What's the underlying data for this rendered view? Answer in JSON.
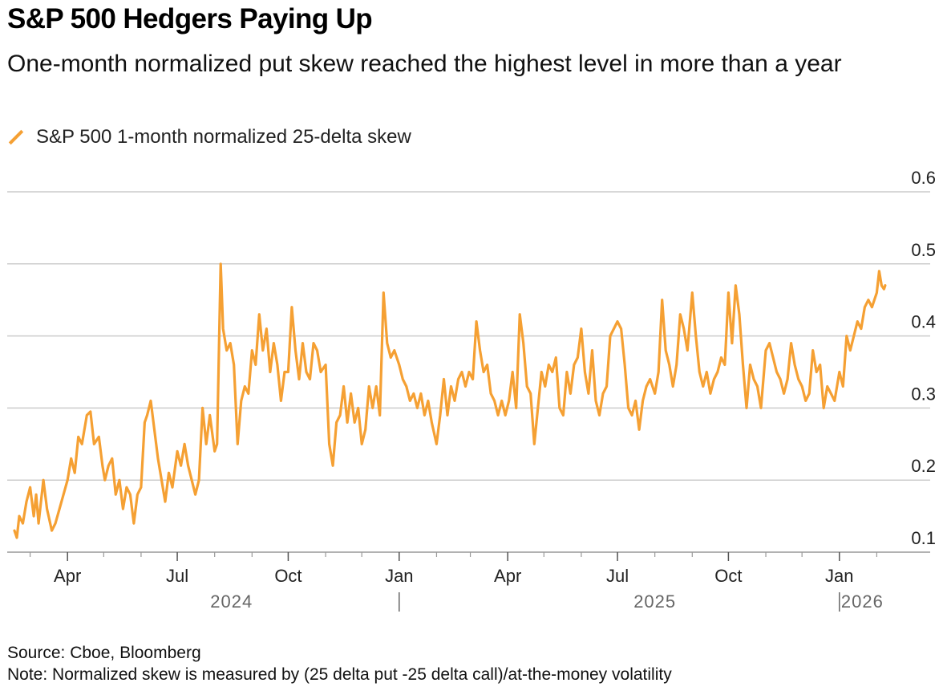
{
  "header": {
    "title": "S&P 500 Hedgers Paying Up",
    "subtitle": "One-month normalized put skew reached the highest level in more than a year"
  },
  "legend": {
    "label": "S&P 500 1-month normalized 25-delta skew",
    "color": "#f5a033"
  },
  "footer": {
    "source": "Source: Cboe, Bloomberg",
    "note": "Note: Normalized skew is measured by (25 delta put -25 delta call)/at-the-money volatility"
  },
  "colors": {
    "line": "#f5a033",
    "grid": "#cccccc",
    "axis": "#999999"
  },
  "chart_data": {
    "type": "line",
    "title": "S&P 500 Hedgers Paying Up",
    "subtitle": "One-month normalized put skew reached the highest level in more than a year",
    "xlabel": "",
    "ylabel": "",
    "x_range": [
      "2024-02-15",
      "2026-02-22"
    ],
    "ylim": [
      0.1,
      0.6
    ],
    "y_ticks": [
      "0.1",
      "0.2",
      "0.3",
      "0.4",
      "0.5",
      "0.6"
    ],
    "y_axis_position": "right",
    "grid": true,
    "legend_position": "top-left",
    "x_month_ticks": [
      {
        "date": "2024-04-01",
        "label": "Apr"
      },
      {
        "date": "2024-07-01",
        "label": "Jul"
      },
      {
        "date": "2024-10-01",
        "label": "Oct"
      },
      {
        "date": "2025-01-01",
        "label": "Jan"
      },
      {
        "date": "2025-04-01",
        "label": "Apr"
      },
      {
        "date": "2025-07-01",
        "label": "Jul"
      },
      {
        "date": "2025-10-01",
        "label": "Oct"
      },
      {
        "date": "2026-01-01",
        "label": "Jan"
      }
    ],
    "x_year_labels": [
      {
        "date": "2024-08-15",
        "label": "2024"
      },
      {
        "date": "2025-08-01",
        "label": "2025"
      },
      {
        "date": "2026-01-20",
        "label": "2026"
      }
    ],
    "x_year_separators": [
      "2025-01-01",
      "2026-01-01"
    ],
    "series": [
      {
        "name": "S&P 500 1-month normalized 25-delta skew",
        "color": "#f5a033",
        "points": [
          [
            "2024-02-17",
            0.13
          ],
          [
            "2024-02-19",
            0.12
          ],
          [
            "2024-02-21",
            0.15
          ],
          [
            "2024-02-24",
            0.14
          ],
          [
            "2024-02-27",
            0.17
          ],
          [
            "2024-03-01",
            0.19
          ],
          [
            "2024-03-04",
            0.15
          ],
          [
            "2024-03-06",
            0.18
          ],
          [
            "2024-03-08",
            0.14
          ],
          [
            "2024-03-12",
            0.2
          ],
          [
            "2024-03-15",
            0.16
          ],
          [
            "2024-03-19",
            0.13
          ],
          [
            "2024-03-22",
            0.14
          ],
          [
            "2024-03-27",
            0.17
          ],
          [
            "2024-04-01",
            0.2
          ],
          [
            "2024-04-04",
            0.23
          ],
          [
            "2024-04-07",
            0.21
          ],
          [
            "2024-04-10",
            0.26
          ],
          [
            "2024-04-13",
            0.25
          ],
          [
            "2024-04-17",
            0.29
          ],
          [
            "2024-04-20",
            0.295
          ],
          [
            "2024-04-23",
            0.25
          ],
          [
            "2024-04-27",
            0.26
          ],
          [
            "2024-04-30",
            0.22
          ],
          [
            "2024-05-02",
            0.2
          ],
          [
            "2024-05-05",
            0.22
          ],
          [
            "2024-05-08",
            0.23
          ],
          [
            "2024-05-11",
            0.18
          ],
          [
            "2024-05-14",
            0.2
          ],
          [
            "2024-05-17",
            0.16
          ],
          [
            "2024-05-20",
            0.19
          ],
          [
            "2024-05-23",
            0.18
          ],
          [
            "2024-05-26",
            0.14
          ],
          [
            "2024-05-29",
            0.18
          ],
          [
            "2024-06-01",
            0.19
          ],
          [
            "2024-06-04",
            0.28
          ],
          [
            "2024-06-06",
            0.29
          ],
          [
            "2024-06-09",
            0.31
          ],
          [
            "2024-06-12",
            0.27
          ],
          [
            "2024-06-15",
            0.23
          ],
          [
            "2024-06-18",
            0.2
          ],
          [
            "2024-06-21",
            0.17
          ],
          [
            "2024-06-24",
            0.21
          ],
          [
            "2024-06-27",
            0.19
          ],
          [
            "2024-07-01",
            0.24
          ],
          [
            "2024-07-04",
            0.22
          ],
          [
            "2024-07-07",
            0.25
          ],
          [
            "2024-07-10",
            0.22
          ],
          [
            "2024-07-13",
            0.2
          ],
          [
            "2024-07-16",
            0.18
          ],
          [
            "2024-07-19",
            0.2
          ],
          [
            "2024-07-22",
            0.3
          ],
          [
            "2024-07-25",
            0.25
          ],
          [
            "2024-07-28",
            0.29
          ],
          [
            "2024-08-01",
            0.24
          ],
          [
            "2024-08-03",
            0.25
          ],
          [
            "2024-08-06",
            0.5
          ],
          [
            "2024-08-08",
            0.41
          ],
          [
            "2024-08-11",
            0.38
          ],
          [
            "2024-08-14",
            0.39
          ],
          [
            "2024-08-17",
            0.36
          ],
          [
            "2024-08-20",
            0.25
          ],
          [
            "2024-08-23",
            0.31
          ],
          [
            "2024-08-26",
            0.33
          ],
          [
            "2024-08-29",
            0.32
          ],
          [
            "2024-09-01",
            0.38
          ],
          [
            "2024-09-04",
            0.36
          ],
          [
            "2024-09-07",
            0.43
          ],
          [
            "2024-09-10",
            0.38
          ],
          [
            "2024-09-13",
            0.41
          ],
          [
            "2024-09-16",
            0.35
          ],
          [
            "2024-09-19",
            0.39
          ],
          [
            "2024-09-22",
            0.36
          ],
          [
            "2024-09-25",
            0.31
          ],
          [
            "2024-09-28",
            0.35
          ],
          [
            "2024-10-01",
            0.35
          ],
          [
            "2024-10-04",
            0.44
          ],
          [
            "2024-10-07",
            0.38
          ],
          [
            "2024-10-10",
            0.34
          ],
          [
            "2024-10-13",
            0.39
          ],
          [
            "2024-10-16",
            0.35
          ],
          [
            "2024-10-19",
            0.34
          ],
          [
            "2024-10-22",
            0.39
          ],
          [
            "2024-10-25",
            0.38
          ],
          [
            "2024-10-28",
            0.35
          ],
          [
            "2024-11-01",
            0.36
          ],
          [
            "2024-11-04",
            0.25
          ],
          [
            "2024-11-07",
            0.22
          ],
          [
            "2024-11-10",
            0.28
          ],
          [
            "2024-11-13",
            0.29
          ],
          [
            "2024-11-16",
            0.33
          ],
          [
            "2024-11-19",
            0.28
          ],
          [
            "2024-11-22",
            0.32
          ],
          [
            "2024-11-25",
            0.28
          ],
          [
            "2024-11-28",
            0.3
          ],
          [
            "2024-12-01",
            0.25
          ],
          [
            "2024-12-04",
            0.27
          ],
          [
            "2024-12-07",
            0.33
          ],
          [
            "2024-12-10",
            0.3
          ],
          [
            "2024-12-13",
            0.33
          ],
          [
            "2024-12-16",
            0.29
          ],
          [
            "2024-12-19",
            0.46
          ],
          [
            "2024-12-22",
            0.39
          ],
          [
            "2024-12-25",
            0.37
          ],
          [
            "2024-12-28",
            0.38
          ],
          [
            "2025-01-01",
            0.36
          ],
          [
            "2025-01-04",
            0.34
          ],
          [
            "2025-01-07",
            0.33
          ],
          [
            "2025-01-10",
            0.31
          ],
          [
            "2025-01-13",
            0.32
          ],
          [
            "2025-01-16",
            0.3
          ],
          [
            "2025-01-19",
            0.32
          ],
          [
            "2025-01-22",
            0.29
          ],
          [
            "2025-01-25",
            0.31
          ],
          [
            "2025-01-28",
            0.28
          ],
          [
            "2025-02-01",
            0.25
          ],
          [
            "2025-02-04",
            0.29
          ],
          [
            "2025-02-07",
            0.34
          ],
          [
            "2025-02-10",
            0.29
          ],
          [
            "2025-02-13",
            0.33
          ],
          [
            "2025-02-16",
            0.31
          ],
          [
            "2025-02-19",
            0.34
          ],
          [
            "2025-02-22",
            0.35
          ],
          [
            "2025-02-25",
            0.33
          ],
          [
            "2025-02-28",
            0.35
          ],
          [
            "2025-03-03",
            0.34
          ],
          [
            "2025-03-06",
            0.42
          ],
          [
            "2025-03-09",
            0.38
          ],
          [
            "2025-03-12",
            0.35
          ],
          [
            "2025-03-15",
            0.36
          ],
          [
            "2025-03-18",
            0.32
          ],
          [
            "2025-03-21",
            0.31
          ],
          [
            "2025-03-24",
            0.29
          ],
          [
            "2025-03-27",
            0.31
          ],
          [
            "2025-03-30",
            0.29
          ],
          [
            "2025-04-02",
            0.31
          ],
          [
            "2025-04-05",
            0.35
          ],
          [
            "2025-04-08",
            0.3
          ],
          [
            "2025-04-11",
            0.43
          ],
          [
            "2025-04-14",
            0.39
          ],
          [
            "2025-04-17",
            0.33
          ],
          [
            "2025-04-20",
            0.32
          ],
          [
            "2025-04-23",
            0.25
          ],
          [
            "2025-04-26",
            0.3
          ],
          [
            "2025-04-29",
            0.35
          ],
          [
            "2025-05-02",
            0.33
          ],
          [
            "2025-05-05",
            0.36
          ],
          [
            "2025-05-08",
            0.35
          ],
          [
            "2025-05-11",
            0.37
          ],
          [
            "2025-05-14",
            0.3
          ],
          [
            "2025-05-17",
            0.29
          ],
          [
            "2025-05-20",
            0.35
          ],
          [
            "2025-05-23",
            0.32
          ],
          [
            "2025-05-26",
            0.36
          ],
          [
            "2025-05-29",
            0.37
          ],
          [
            "2025-06-01",
            0.41
          ],
          [
            "2025-06-04",
            0.35
          ],
          [
            "2025-06-07",
            0.32
          ],
          [
            "2025-06-10",
            0.38
          ],
          [
            "2025-06-13",
            0.31
          ],
          [
            "2025-06-16",
            0.29
          ],
          [
            "2025-06-19",
            0.32
          ],
          [
            "2025-06-22",
            0.33
          ],
          [
            "2025-06-25",
            0.4
          ],
          [
            "2025-06-28",
            0.41
          ],
          [
            "2025-07-01",
            0.42
          ],
          [
            "2025-07-04",
            0.41
          ],
          [
            "2025-07-07",
            0.36
          ],
          [
            "2025-07-10",
            0.3
          ],
          [
            "2025-07-13",
            0.29
          ],
          [
            "2025-07-16",
            0.31
          ],
          [
            "2025-07-19",
            0.27
          ],
          [
            "2025-07-22",
            0.31
          ],
          [
            "2025-07-25",
            0.33
          ],
          [
            "2025-07-28",
            0.34
          ],
          [
            "2025-08-01",
            0.32
          ],
          [
            "2025-08-04",
            0.35
          ],
          [
            "2025-08-07",
            0.45
          ],
          [
            "2025-08-10",
            0.38
          ],
          [
            "2025-08-13",
            0.36
          ],
          [
            "2025-08-16",
            0.33
          ],
          [
            "2025-08-19",
            0.36
          ],
          [
            "2025-08-22",
            0.43
          ],
          [
            "2025-08-25",
            0.41
          ],
          [
            "2025-08-28",
            0.38
          ],
          [
            "2025-09-01",
            0.46
          ],
          [
            "2025-09-04",
            0.4
          ],
          [
            "2025-09-07",
            0.35
          ],
          [
            "2025-09-10",
            0.33
          ],
          [
            "2025-09-13",
            0.35
          ],
          [
            "2025-09-16",
            0.32
          ],
          [
            "2025-09-19",
            0.34
          ],
          [
            "2025-09-22",
            0.35
          ],
          [
            "2025-09-25",
            0.37
          ],
          [
            "2025-09-28",
            0.36
          ],
          [
            "2025-10-01",
            0.46
          ],
          [
            "2025-10-04",
            0.39
          ],
          [
            "2025-10-07",
            0.47
          ],
          [
            "2025-10-10",
            0.43
          ],
          [
            "2025-10-13",
            0.36
          ],
          [
            "2025-10-16",
            0.3
          ],
          [
            "2025-10-19",
            0.36
          ],
          [
            "2025-10-22",
            0.34
          ],
          [
            "2025-10-25",
            0.33
          ],
          [
            "2025-10-28",
            0.3
          ],
          [
            "2025-11-01",
            0.38
          ],
          [
            "2025-11-04",
            0.39
          ],
          [
            "2025-11-07",
            0.37
          ],
          [
            "2025-11-10",
            0.35
          ],
          [
            "2025-11-13",
            0.34
          ],
          [
            "2025-11-16",
            0.32
          ],
          [
            "2025-11-19",
            0.34
          ],
          [
            "2025-11-22",
            0.39
          ],
          [
            "2025-11-25",
            0.36
          ],
          [
            "2025-11-28",
            0.34
          ],
          [
            "2025-12-01",
            0.33
          ],
          [
            "2025-12-04",
            0.31
          ],
          [
            "2025-12-07",
            0.32
          ],
          [
            "2025-12-10",
            0.38
          ],
          [
            "2025-12-13",
            0.35
          ],
          [
            "2025-12-16",
            0.36
          ],
          [
            "2025-12-19",
            0.3
          ],
          [
            "2025-12-22",
            0.33
          ],
          [
            "2025-12-25",
            0.32
          ],
          [
            "2025-12-28",
            0.31
          ],
          [
            "2026-01-01",
            0.35
          ],
          [
            "2026-01-04",
            0.33
          ],
          [
            "2026-01-07",
            0.4
          ],
          [
            "2026-01-10",
            0.38
          ],
          [
            "2026-01-13",
            0.4
          ],
          [
            "2026-01-16",
            0.42
          ],
          [
            "2026-01-19",
            0.41
          ],
          [
            "2026-01-22",
            0.44
          ],
          [
            "2026-01-25",
            0.45
          ],
          [
            "2026-01-28",
            0.44
          ],
          [
            "2026-02-01",
            0.46
          ],
          [
            "2026-02-03",
            0.49
          ],
          [
            "2026-02-05",
            0.47
          ],
          [
            "2026-02-07",
            0.465
          ],
          [
            "2026-02-08",
            0.47
          ]
        ]
      }
    ]
  }
}
